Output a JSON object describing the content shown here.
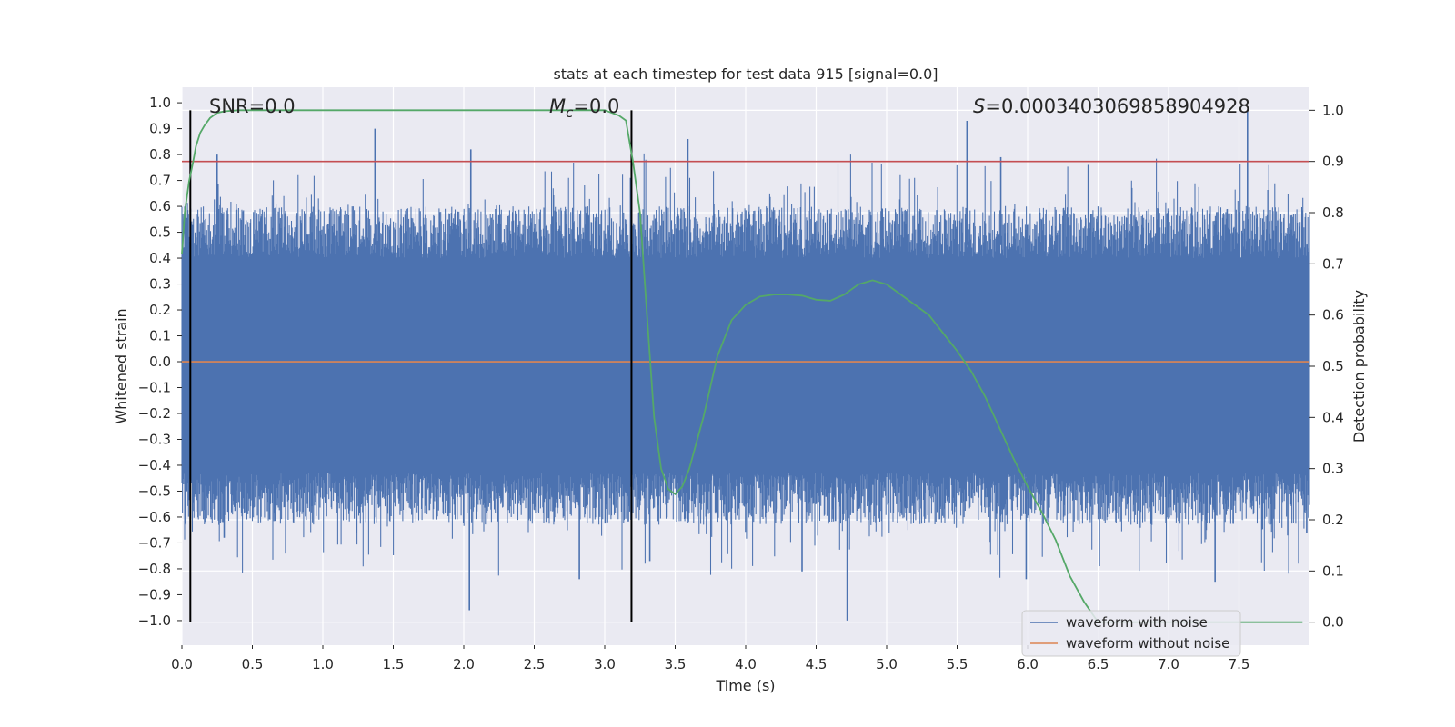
{
  "chart_data": {
    "type": "line",
    "title": "stats at each timestep for test data 915 [signal=0.0]",
    "xlabel": "Time (s)",
    "ylabel": "Whitened strain",
    "y2label": "Detection probability",
    "xlim": [
      0.0,
      8.0
    ],
    "ylim": [
      -1.095,
      1.06
    ],
    "y2lim": [
      -0.045,
      1.045
    ],
    "xticks": [
      "0.0",
      "0.5",
      "1.0",
      "1.5",
      "2.0",
      "2.5",
      "3.0",
      "3.5",
      "4.0",
      "4.5",
      "5.0",
      "5.5",
      "6.0",
      "6.5",
      "7.0",
      "7.5"
    ],
    "xtick_values": [
      0,
      0.5,
      1,
      1.5,
      2,
      2.5,
      3,
      3.5,
      4,
      4.5,
      5,
      5.5,
      6,
      6.5,
      7,
      7.5
    ],
    "yticks": [
      "1.0",
      "0.9",
      "0.8",
      "0.7",
      "0.6",
      "0.5",
      "0.4",
      "0.3",
      "0.2",
      "0.1",
      "0.0",
      "−0.1",
      "−0.2",
      "−0.3",
      "−0.4",
      "−0.5",
      "−0.6",
      "−0.7",
      "−0.8",
      "−0.9",
      "−1.0"
    ],
    "ytick_values": [
      1.0,
      0.9,
      0.8,
      0.7,
      0.6,
      0.5,
      0.4,
      0.3,
      0.2,
      0.1,
      0.0,
      -0.1,
      -0.2,
      -0.3,
      -0.4,
      -0.5,
      -0.6,
      -0.7,
      -0.8,
      -0.9,
      -1.0
    ],
    "y2ticks": [
      "1.0",
      "0.9",
      "0.8",
      "0.7",
      "0.6",
      "0.5",
      "0.4",
      "0.3",
      "0.2",
      "0.1",
      "0.0"
    ],
    "y2tick_values": [
      1.0,
      0.9,
      0.8,
      0.7,
      0.6,
      0.5,
      0.4,
      0.3,
      0.2,
      0.1,
      0.0
    ],
    "annotations": {
      "snr": "SNR=0.0",
      "mc_base": "M",
      "mc_sub": "c",
      "mc_rest": "=0.0",
      "s_base": "S",
      "s_rest": "=0.0003403069858904928"
    },
    "legend": {
      "position": "lower right",
      "entries": [
        "waveform with noise",
        "waveform without noise"
      ]
    },
    "colors": {
      "noise": "#4c72b0",
      "clean": "#dd8452",
      "probability": "#55a868",
      "threshold": "#c44e52",
      "vline": "#000000",
      "plot_bg": "#eaeaf2",
      "grid": "#ffffff"
    },
    "vlines_x": [
      0.06,
      3.19
    ],
    "threshold_prob": 0.9,
    "noise_series": {
      "name": "waveform with noise",
      "n_samples": 2048,
      "x_range": [
        0.0,
        8.0
      ],
      "envelope": [
        0.4,
        0.43
      ],
      "spikes": [
        {
          "x": 0.25,
          "y": 0.8
        },
        {
          "x": 0.3,
          "y": -0.68
        },
        {
          "x": 1.37,
          "y": 0.9
        },
        {
          "x": 2.05,
          "y": 0.82
        },
        {
          "x": 2.04,
          "y": -0.96
        },
        {
          "x": 2.82,
          "y": -0.84
        },
        {
          "x": 3.59,
          "y": 0.86
        },
        {
          "x": 3.32,
          "y": -0.77
        },
        {
          "x": 4.4,
          "y": -0.81
        },
        {
          "x": 4.72,
          "y": -1.0
        },
        {
          "x": 5.57,
          "y": 0.93
        },
        {
          "x": 5.81,
          "y": 0.79
        },
        {
          "x": 5.99,
          "y": -0.84
        },
        {
          "x": 6.43,
          "y": 0.76
        },
        {
          "x": 7.33,
          "y": -0.85
        },
        {
          "x": 7.56,
          "y": 0.97
        },
        {
          "x": 7.98,
          "y": -0.66
        }
      ]
    },
    "clean_series": {
      "name": "waveform without noise",
      "x": [
        0.0,
        8.0
      ],
      "y": [
        0.0,
        0.0
      ]
    },
    "probability_series": {
      "name": "detection probability",
      "x": [
        0.0,
        0.02,
        0.05,
        0.08,
        0.1,
        0.13,
        0.16,
        0.2,
        0.25,
        0.3,
        0.35,
        0.4,
        0.6,
        1.0,
        1.5,
        2.0,
        2.5,
        3.0,
        3.1,
        3.15,
        3.2,
        3.25,
        3.3,
        3.35,
        3.4,
        3.45,
        3.5,
        3.55,
        3.6,
        3.7,
        3.8,
        3.9,
        4.0,
        4.1,
        4.2,
        4.3,
        4.4,
        4.5,
        4.6,
        4.7,
        4.8,
        4.9,
        5.0,
        5.1,
        5.2,
        5.3,
        5.4,
        5.5,
        5.6,
        5.7,
        5.8,
        5.9,
        6.0,
        6.1,
        6.2,
        6.3,
        6.4,
        6.5,
        7.0,
        7.5,
        7.95
      ],
      "y": [
        0.72,
        0.8,
        0.86,
        0.9,
        0.93,
        0.956,
        0.97,
        0.985,
        0.995,
        0.998,
        0.999,
        1.0,
        1.0,
        1.0,
        1.0,
        1.0,
        1.0,
        1.0,
        0.99,
        0.98,
        0.9,
        0.8,
        0.6,
        0.4,
        0.3,
        0.26,
        0.25,
        0.265,
        0.3,
        0.4,
        0.52,
        0.59,
        0.62,
        0.636,
        0.64,
        0.64,
        0.638,
        0.63,
        0.628,
        0.64,
        0.66,
        0.668,
        0.66,
        0.64,
        0.62,
        0.6,
        0.565,
        0.53,
        0.49,
        0.44,
        0.38,
        0.32,
        0.265,
        0.215,
        0.16,
        0.09,
        0.04,
        0.0,
        0.0,
        0.0,
        0.0
      ]
    }
  }
}
